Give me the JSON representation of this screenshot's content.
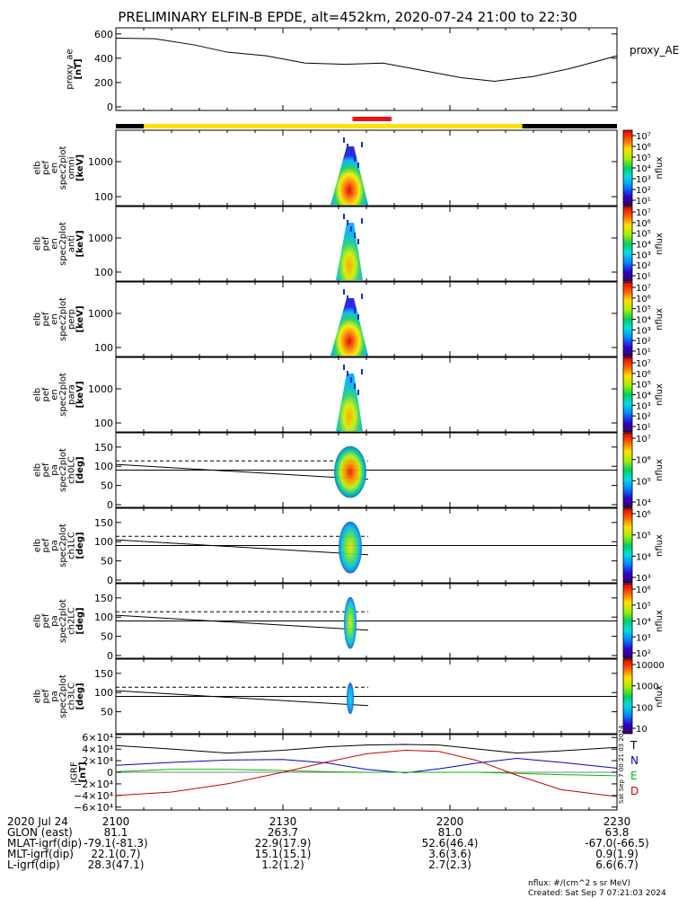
{
  "title": "PRELIMINARY ELFIN-B EPDE, alt=452km, 2020-07-24 21:00 to 22:30",
  "colors": {
    "state_bar": [
      "#000000",
      "#ffe000",
      "#000000"
    ],
    "science_marker": "#ee1111",
    "grf_T": "#000000",
    "grf_N": "#0000cc",
    "grf_E": "#00bb00",
    "grf_D": "#cc0000"
  },
  "chart_data": [
    {
      "type": "line",
      "name": "proxy_AE",
      "ylabel": "proxy_ae\n[nT]",
      "legend": "proxy_AE",
      "ylim": [
        -30,
        650
      ],
      "yticks": [
        "600",
        "400",
        "200",
        "0"
      ],
      "x_minutes": [
        0,
        7,
        14,
        20,
        27,
        34,
        41,
        48,
        55,
        62,
        68,
        75,
        82,
        90
      ],
      "values": [
        565,
        560,
        510,
        450,
        420,
        360,
        350,
        360,
        300,
        240,
        210,
        250,
        320,
        420
      ]
    },
    {
      "type": "table",
      "name": "state-bar",
      "segments": [
        {
          "from": 0,
          "to": 5,
          "color": "black"
        },
        {
          "from": 5,
          "to": 73,
          "color": "yellow"
        },
        {
          "from": 73,
          "to": 90,
          "color": "black"
        }
      ],
      "science_zone_minutes": [
        42.5,
        49.5
      ]
    },
    {
      "type": "heatmap",
      "name": "omni",
      "ylabel": "elb\npef\nen\nspec2plot\nomni\n[keV]",
      "yticks": [
        "1000",
        "100"
      ],
      "colorbar_label": "nflux",
      "colorbar_ticks": [
        "10⁷",
        "10⁶",
        "10⁵",
        "10⁴",
        "10³",
        "10²",
        "10¹"
      ]
    },
    {
      "type": "heatmap",
      "name": "anti",
      "ylabel": "elb\npef\nen\nspec2plot\nanti\n[keV]",
      "yticks": [
        "1000",
        "100"
      ],
      "colorbar_label": "nflux",
      "colorbar_ticks": [
        "10⁷",
        "10⁶",
        "10⁵",
        "10⁴",
        "10³",
        "10²",
        "10¹"
      ]
    },
    {
      "type": "heatmap",
      "name": "perp",
      "ylabel": "elb\npef\nen\nspec2plot\nperp\n[keV]",
      "yticks": [
        "1000",
        "100"
      ],
      "colorbar_label": "nflux",
      "colorbar_ticks": [
        "10⁷",
        "10⁶",
        "10⁵",
        "10⁴",
        "10³",
        "10²",
        "10¹"
      ]
    },
    {
      "type": "heatmap",
      "name": "para",
      "ylabel": "elb\npef\nen\nspec2plot\npara\n[keV]",
      "yticks": [
        "1000",
        "100"
      ],
      "colorbar_label": "nflux",
      "colorbar_ticks": [
        "10⁷",
        "10⁶",
        "10⁵",
        "10⁴",
        "10³",
        "10²",
        "10¹"
      ]
    },
    {
      "type": "heatmap",
      "name": "ch0LC",
      "ylabel": "elb\npef\npa\nspec2plot\nch0LC\n[deg]",
      "yticks": [
        "150",
        "100",
        "50",
        "0"
      ],
      "ylim": [
        0,
        180
      ],
      "colorbar_label": "nflux",
      "colorbar_ticks": [
        "10⁷",
        "10⁶",
        "10⁵",
        "10⁴"
      ]
    },
    {
      "type": "heatmap",
      "name": "ch1LC",
      "ylabel": "elb\npef\npa\nspec2plot\nch1LC\n[deg]",
      "yticks": [
        "150",
        "100",
        "50",
        "0"
      ],
      "ylim": [
        0,
        180
      ],
      "colorbar_label": "nflux",
      "colorbar_ticks": [
        "10⁶",
        "10⁵",
        "10⁴",
        "10³"
      ]
    },
    {
      "type": "heatmap",
      "name": "ch2LC",
      "ylabel": "elb\npef\npa\nspec2plot\nch2LC\n[deg]",
      "yticks": [
        "150",
        "100",
        "50",
        "0"
      ],
      "ylim": [
        0,
        180
      ],
      "colorbar_label": "nflux",
      "colorbar_ticks": [
        "10⁶",
        "10⁵",
        "10⁴",
        "10³",
        "10²"
      ]
    },
    {
      "type": "heatmap",
      "name": "ch3LC",
      "ylabel": "elb\npef\npa\nspec2plot\nch3LC\n[deg]",
      "yticks": [
        "150",
        "100",
        "50"
      ],
      "ylim": [
        0,
        180
      ],
      "colorbar_label": "nflux",
      "colorbar_ticks": [
        "10000",
        "1000",
        "100",
        "10"
      ]
    },
    {
      "type": "line",
      "name": "GRF",
      "ylabel": "IGRF\n[nT]",
      "ylim": [
        -65000,
        65000
      ],
      "yticks": [
        "6×10⁴",
        "4×10⁴",
        "2×10⁴",
        "0",
        "−2×10⁴",
        "−4×10⁴",
        "−6×10⁴"
      ],
      "x_minutes": [
        0,
        10,
        20,
        30,
        38,
        45,
        52,
        58,
        65,
        72,
        80,
        90
      ],
      "series": [
        {
          "name": "T",
          "values": [
            46000,
            40000,
            33000,
            38000,
            44000,
            47000,
            48000,
            47000,
            40000,
            33000,
            37000,
            43000
          ]
        },
        {
          "name": "N",
          "values": [
            12000,
            17000,
            21000,
            22000,
            16000,
            5000,
            -1000,
            6000,
            16000,
            24000,
            17000,
            7000
          ]
        },
        {
          "name": "E",
          "values": [
            1000,
            5000,
            5000,
            3000,
            1000,
            0,
            0,
            0,
            0,
            -2000,
            -4000,
            -6000
          ]
        },
        {
          "name": "D",
          "values": [
            -40000,
            -34000,
            -20000,
            0,
            18000,
            32000,
            38000,
            36000,
            20000,
            -5000,
            -30000,
            -42000
          ]
        }
      ],
      "side_label": "Sat Sep  7 00:21:03 2024"
    }
  ],
  "footer": {
    "rows": [
      {
        "label": "2020 Jul 24",
        "values": [
          "2100",
          "2130",
          "2200",
          "2230"
        ]
      },
      {
        "label": "GLON (east)",
        "values": [
          "81.1",
          "263.7",
          "81.0",
          "63.8"
        ]
      },
      {
        "label": "MLAT-igrf(dip)",
        "values": [
          "-79.1(-81.3)",
          "22.9(17.9)",
          "52.6(46.4)",
          "-67.0(-66.5)"
        ]
      },
      {
        "label": "MLT-igrf(dip)",
        "values": [
          "22.1(0.7)",
          "15.1(15.1)",
          "3.6(3.6)",
          "0.9(1.9)"
        ]
      },
      {
        "label": "L-igrf(dip)",
        "values": [
          "28.3(47.1)",
          "1.2(1.2)",
          "2.7(2.3)",
          "6.6(6.7)"
        ]
      }
    ],
    "note_units": "nflux: #/(cm^2 s sr MeV)",
    "note_created": "Created: Sat Sep  7 07:21:03 2024"
  }
}
